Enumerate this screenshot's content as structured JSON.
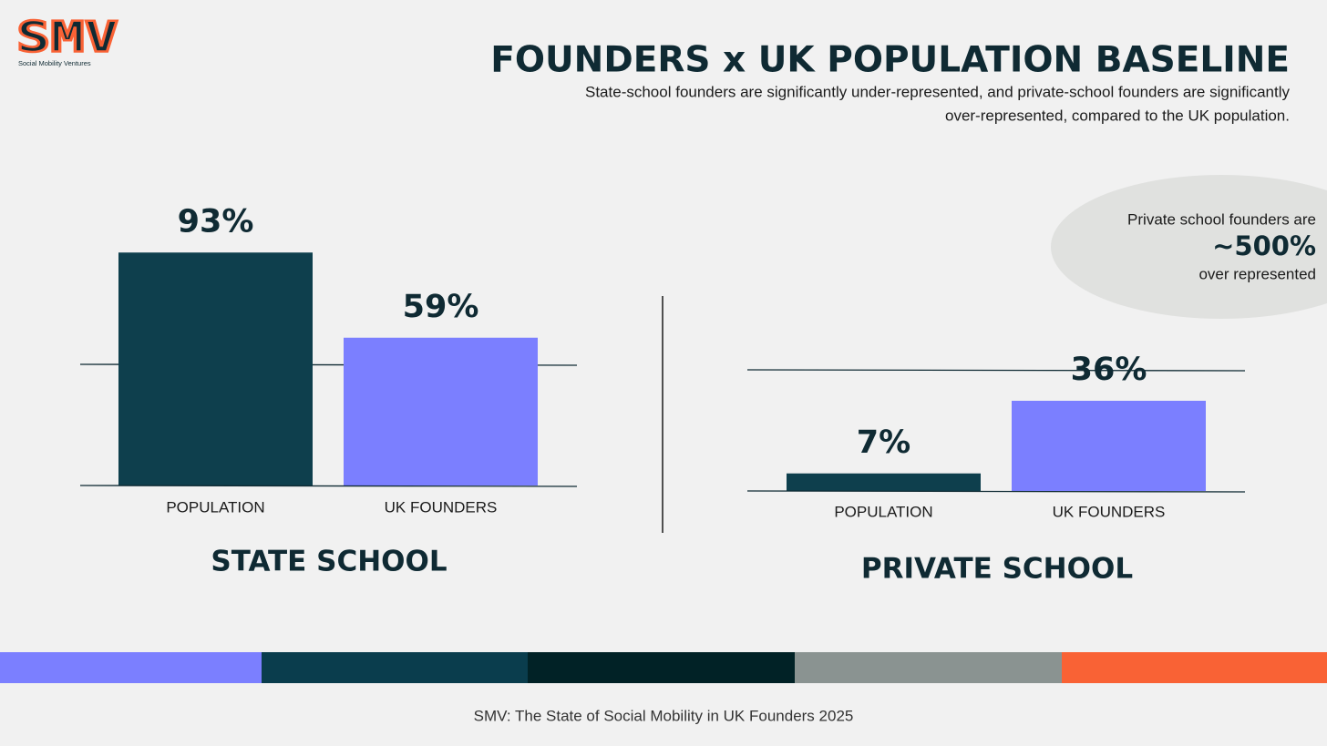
{
  "logo": {
    "mark": "SMV",
    "name": "Social Mobility Ventures"
  },
  "header": {
    "title": "FOUNDERS x UK POPULATION BASELINE",
    "subtitle": [
      "State-school founders are significantly under-represented, and private-school founders are significantly",
      "over-represented, compared to the UK population."
    ]
  },
  "callout": {
    "lead": "Private school founders are",
    "figure": "~500%",
    "tail": "over represented"
  },
  "chart_data": [
    {
      "type": "bar",
      "title": "STATE SCHOOL",
      "categories": [
        "POPULATION",
        "UK FOUNDERS"
      ],
      "values": [
        93,
        59
      ],
      "value_labels": [
        "93%",
        "59%"
      ],
      "colors": [
        "#0e3f4d",
        "#7b7fff"
      ]
    },
    {
      "type": "bar",
      "title": "PRIVATE SCHOOL",
      "categories": [
        "POPULATION",
        "UK FOUNDERS"
      ],
      "values": [
        7,
        36
      ],
      "value_labels": [
        "7%",
        "36%"
      ],
      "colors": [
        "#0e3f4d",
        "#7b7fff"
      ]
    }
  ],
  "footer": "SMV: The State of Social Mobility in UK Founders 2025"
}
